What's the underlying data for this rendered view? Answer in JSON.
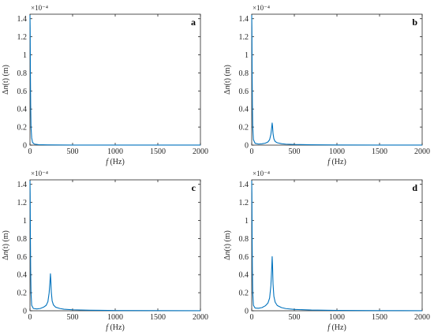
{
  "colors": {
    "series": "#0072BD",
    "axis": "#262626"
  },
  "chart_data": [
    {
      "type": "line",
      "panel": "a",
      "xlabel_var": "f",
      "xlabel_unit": "(Hz)",
      "ylabel_prefix": "Δ",
      "ylabel_var": "n",
      "ylabel_arg": "(t)",
      "ylabel_unit": "(m)",
      "y_exponent": "×10⁻⁴",
      "xlim": [
        0,
        2000
      ],
      "ylim": [
        0,
        1.45
      ],
      "xticks": [
        "0",
        "500",
        "1000",
        "1500",
        "2000"
      ],
      "yticks": [
        "0",
        "0.2",
        "0.4",
        "0.6",
        "0.8",
        "1",
        "1.2",
        "1.4"
      ],
      "series": [
        {
          "x": [
            0,
            2,
            5,
            8,
            12,
            20,
            30,
            50,
            100,
            200,
            500,
            1000,
            1500,
            2000
          ],
          "values": [
            1.44,
            1.3,
            0.8,
            0.45,
            0.2,
            0.08,
            0.03,
            0.012,
            0.005,
            0.003,
            0.001,
            0.0005,
            0.0003,
            0.0002
          ]
        }
      ]
    },
    {
      "type": "line",
      "panel": "b",
      "xlabel_var": "f",
      "xlabel_unit": "(Hz)",
      "ylabel_prefix": "Δ",
      "ylabel_var": "n",
      "ylabel_arg": "(t)",
      "ylabel_unit": "(m)",
      "y_exponent": "×10⁻⁴",
      "xlim": [
        0,
        2000
      ],
      "ylim": [
        0,
        1.45
      ],
      "xticks": [
        "0",
        "500",
        "1000",
        "1500",
        "2000"
      ],
      "yticks": [
        "0",
        "0.2",
        "0.4",
        "0.6",
        "0.8",
        "1",
        "1.2",
        "1.4"
      ],
      "series": [
        {
          "x": [
            0,
            2,
            5,
            8,
            12,
            20,
            40,
            80,
            120,
            160,
            190,
            210,
            225,
            235,
            240,
            245,
            250,
            260,
            275,
            300,
            350,
            400,
            500,
            700,
            1000,
            1500,
            2000
          ],
          "values": [
            1.44,
            1.3,
            0.8,
            0.45,
            0.2,
            0.06,
            0.02,
            0.012,
            0.015,
            0.022,
            0.035,
            0.06,
            0.12,
            0.2,
            0.245,
            0.2,
            0.13,
            0.07,
            0.04,
            0.026,
            0.016,
            0.011,
            0.007,
            0.004,
            0.002,
            0.001,
            0.0005
          ]
        }
      ]
    },
    {
      "type": "line",
      "panel": "c",
      "xlabel_var": "f",
      "xlabel_unit": "(Hz)",
      "ylabel_prefix": "Δ",
      "ylabel_var": "n",
      "ylabel_arg": "(t)",
      "ylabel_unit": "(m)",
      "y_exponent": "×10⁻⁴",
      "xlim": [
        0,
        2000
      ],
      "ylim": [
        0,
        1.45
      ],
      "xticks": [
        "0",
        "500",
        "1000",
        "1500",
        "2000"
      ],
      "yticks": [
        "0",
        "0.2",
        "0.4",
        "0.6",
        "0.8",
        "1",
        "1.2",
        "1.4"
      ],
      "series": [
        {
          "x": [
            0,
            2,
            5,
            8,
            12,
            20,
            40,
            80,
            120,
            160,
            190,
            210,
            225,
            235,
            240,
            245,
            250,
            260,
            275,
            300,
            350,
            400,
            500,
            700,
            1000,
            1500,
            2000
          ],
          "values": [
            1.44,
            1.3,
            0.8,
            0.45,
            0.2,
            0.06,
            0.025,
            0.02,
            0.025,
            0.04,
            0.06,
            0.1,
            0.2,
            0.33,
            0.41,
            0.33,
            0.21,
            0.11,
            0.065,
            0.04,
            0.025,
            0.017,
            0.011,
            0.006,
            0.003,
            0.0015,
            0.0008
          ]
        }
      ]
    },
    {
      "type": "line",
      "panel": "d",
      "xlabel_var": "f",
      "xlabel_unit": "(Hz)",
      "ylabel_prefix": "Δ",
      "ylabel_var": "n",
      "ylabel_arg": "(t)",
      "ylabel_unit": "(m)",
      "y_exponent": "×10⁻⁴",
      "xlim": [
        0,
        2000
      ],
      "ylim": [
        0,
        1.45
      ],
      "xticks": [
        "0",
        "500",
        "1000",
        "1500",
        "2000"
      ],
      "yticks": [
        "0",
        "0.2",
        "0.4",
        "0.6",
        "0.8",
        "1",
        "1.2",
        "1.4"
      ],
      "series": [
        {
          "x": [
            0,
            2,
            5,
            8,
            12,
            20,
            40,
            80,
            120,
            160,
            190,
            210,
            225,
            235,
            240,
            245,
            250,
            260,
            275,
            300,
            350,
            400,
            500,
            700,
            1000,
            1500,
            2000
          ],
          "values": [
            1.44,
            1.3,
            0.8,
            0.45,
            0.2,
            0.06,
            0.03,
            0.028,
            0.035,
            0.055,
            0.085,
            0.14,
            0.28,
            0.48,
            0.6,
            0.48,
            0.3,
            0.16,
            0.095,
            0.058,
            0.035,
            0.024,
            0.015,
            0.008,
            0.004,
            0.002,
            0.001
          ]
        }
      ]
    }
  ]
}
